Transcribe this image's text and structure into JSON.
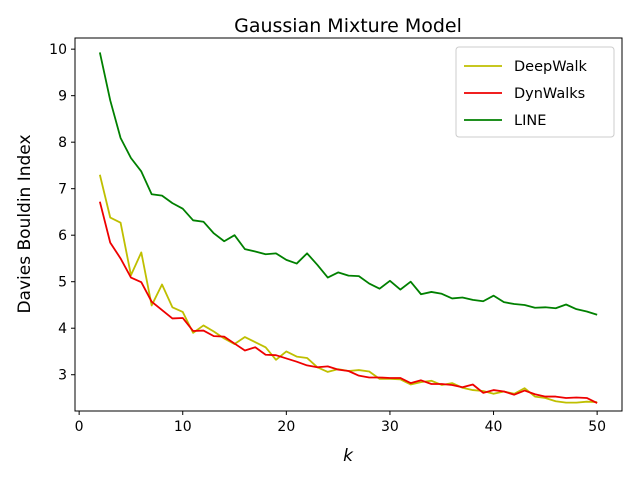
{
  "chart_data": {
    "type": "line",
    "title": "Gaussian Mixture Model",
    "xlabel": "k",
    "ylabel": "Davies Bouldin Index",
    "xlim": [
      -0.4,
      52.4
    ],
    "ylim": [
      2.22,
      10.24
    ],
    "xticks": [
      0,
      10,
      20,
      30,
      40,
      50
    ],
    "yticks": [
      3,
      4,
      5,
      6,
      7,
      8,
      9,
      10
    ],
    "grid": false,
    "legend_position": "top-right",
    "x": [
      2,
      3,
      4,
      5,
      6,
      7,
      8,
      9,
      10,
      11,
      12,
      13,
      14,
      15,
      16,
      17,
      18,
      19,
      20,
      21,
      22,
      23,
      24,
      25,
      26,
      27,
      28,
      29,
      30,
      31,
      32,
      33,
      34,
      35,
      36,
      37,
      38,
      39,
      40,
      41,
      42,
      43,
      44,
      45,
      46,
      47,
      48,
      49,
      50
    ],
    "series": [
      {
        "name": "DeepWalk",
        "color": "#bfbf00",
        "values": [
          7.3,
          6.38,
          6.27,
          5.14,
          5.63,
          4.49,
          4.94,
          4.45,
          4.35,
          3.9,
          4.06,
          3.93,
          3.78,
          3.66,
          3.81,
          3.7,
          3.59,
          3.32,
          3.5,
          3.39,
          3.36,
          3.16,
          3.06,
          3.12,
          3.08,
          3.1,
          3.07,
          2.91,
          2.91,
          2.9,
          2.79,
          2.84,
          2.87,
          2.78,
          2.82,
          2.72,
          2.67,
          2.65,
          2.59,
          2.64,
          2.59,
          2.71,
          2.53,
          2.5,
          2.43,
          2.4,
          2.4,
          2.42,
          2.41
        ]
      },
      {
        "name": "DynWalks",
        "color": "#ee0000",
        "values": [
          6.72,
          5.84,
          5.5,
          5.09,
          4.99,
          4.57,
          4.39,
          4.21,
          4.22,
          3.94,
          3.95,
          3.83,
          3.82,
          3.67,
          3.52,
          3.59,
          3.43,
          3.42,
          3.35,
          3.28,
          3.2,
          3.16,
          3.18,
          3.11,
          3.08,
          2.98,
          2.94,
          2.94,
          2.93,
          2.93,
          2.82,
          2.88,
          2.8,
          2.8,
          2.78,
          2.73,
          2.79,
          2.61,
          2.67,
          2.64,
          2.57,
          2.66,
          2.58,
          2.53,
          2.53,
          2.5,
          2.51,
          2.5,
          2.39
        ]
      },
      {
        "name": "LINE",
        "color": "#008000",
        "values": [
          9.93,
          8.9,
          8.09,
          7.66,
          7.37,
          6.88,
          6.85,
          6.69,
          6.57,
          6.32,
          6.29,
          6.04,
          5.87,
          6.0,
          5.7,
          5.65,
          5.59,
          5.61,
          5.47,
          5.39,
          5.61,
          5.36,
          5.09,
          5.2,
          5.13,
          5.12,
          4.96,
          4.85,
          5.02,
          4.83,
          5.0,
          4.73,
          4.78,
          4.74,
          4.64,
          4.66,
          4.61,
          4.58,
          4.7,
          4.56,
          4.52,
          4.5,
          4.44,
          4.45,
          4.43,
          4.51,
          4.41,
          4.36,
          4.29
        ]
      }
    ]
  }
}
